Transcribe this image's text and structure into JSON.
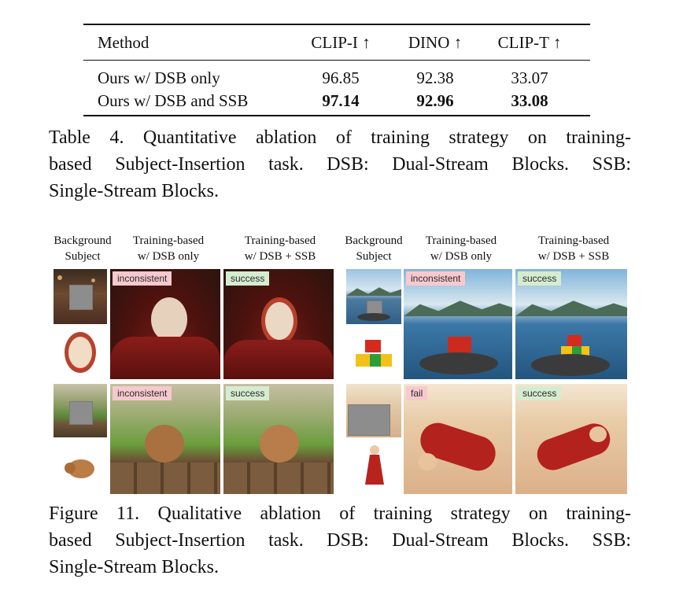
{
  "table": {
    "headers": [
      "Method",
      "CLIP-I ↑",
      "DINO ↑",
      "CLIP-T ↑"
    ],
    "rows": [
      {
        "method": "Ours w/ DSB only",
        "clip_i": "96.85",
        "dino": "92.38",
        "clip_t": "33.07"
      },
      {
        "method": "Ours w/ DSB and SSB",
        "clip_i": "97.14",
        "dino": "92.96",
        "clip_t": "33.08"
      }
    ],
    "caption_lines": [
      "Table 4.  Quantitative ablation of training strategy on training-",
      "based Subject-Insertion task.  DSB: Dual-Stream Blocks.  SSB:",
      "Single-Stream Blocks."
    ]
  },
  "figure": {
    "column_headers": [
      {
        "l1": "Background",
        "l2": "Subject"
      },
      {
        "l1": "Training-based",
        "l2": "w/ DSB only"
      },
      {
        "l1": "Training-based",
        "l2": "w/ DSB + SSB"
      },
      {
        "l1": "Background",
        "l2": "Subject"
      },
      {
        "l1": "Training-based",
        "l2": "w/ DSB only"
      },
      {
        "l1": "Training-based",
        "l2": "w/ DSB + SSB"
      }
    ],
    "tags": {
      "r1_left_dsb": "inconsistent",
      "r1_left_ssb": "success",
      "r1_right_dsb": "inconsistent",
      "r1_right_ssb": "success",
      "r2_left_dsb": "inconsistent",
      "r2_left_ssb": "success",
      "r2_right_dsb": "fail",
      "r2_right_ssb": "success"
    },
    "colors": {
      "fail_tag": "#f7c9cf",
      "success_tag": "#d6ecd0"
    },
    "caption_lines": [
      "Figure 11.  Qualitative ablation of training strategy on training-",
      "based Subject-Insertion task.  DSB: Dual-Stream Blocks.  SSB:",
      "Single-Stream Blocks."
    ]
  }
}
